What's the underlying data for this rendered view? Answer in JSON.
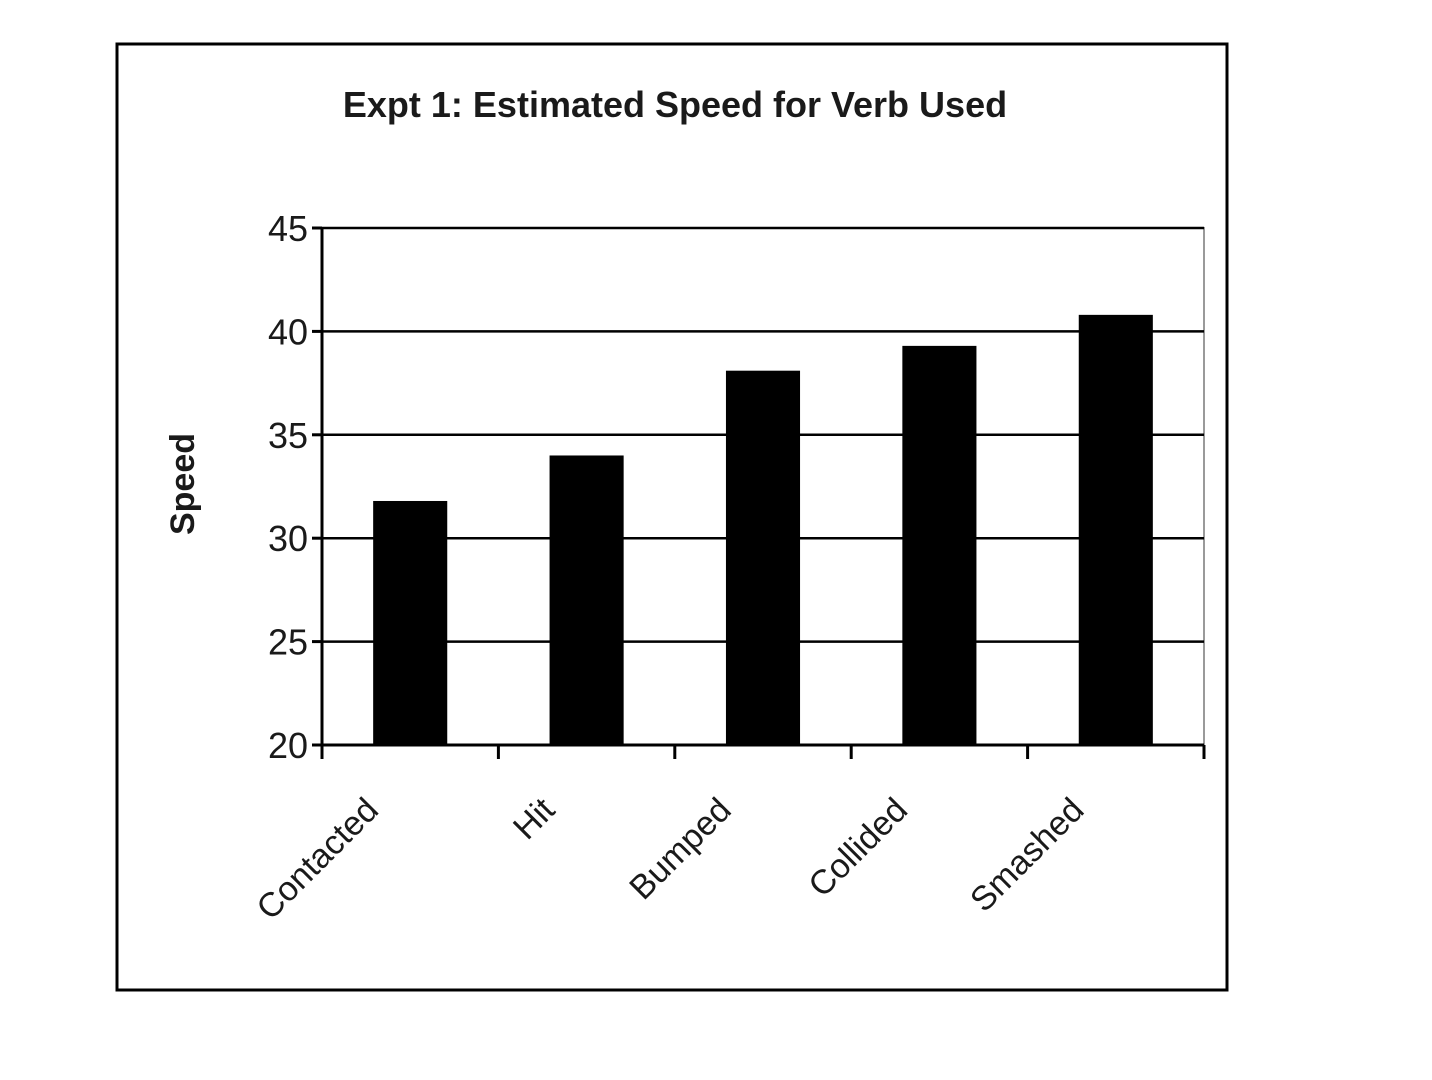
{
  "chart_data": {
    "type": "bar",
    "title": "Expt 1: Estimated Speed for Verb Used",
    "xlabel": "",
    "ylabel": "Speed",
    "categories": [
      "Contacted",
      "Hit",
      "Bumped",
      "Collided",
      "Smashed"
    ],
    "values": [
      31.8,
      34.0,
      38.1,
      39.3,
      40.8
    ],
    "ylim": [
      20,
      45
    ],
    "yticks": [
      20,
      25,
      30,
      35,
      40,
      45
    ],
    "grid": true,
    "legend": "none",
    "colors": {
      "bar": "#000000",
      "grid": "#000000",
      "frame": "#000000",
      "background": "#ffffff"
    }
  }
}
